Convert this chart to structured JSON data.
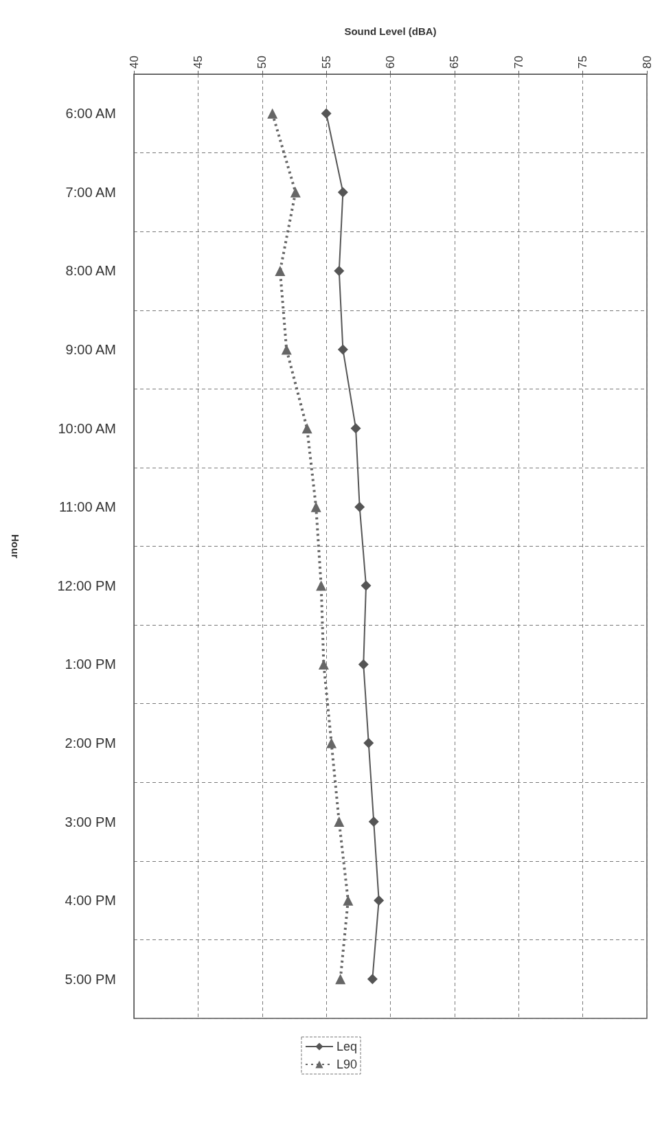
{
  "chart_data": {
    "type": "line",
    "orientation": "horizontal",
    "xlabel": "Sound Level (dBA)",
    "ylabel": "Hour",
    "categories": [
      "6:00 AM",
      "7:00 AM",
      "8:00 AM",
      "9:00 AM",
      "10:00 AM",
      "11:00 AM",
      "12:00 PM",
      "1:00 PM",
      "2:00 PM",
      "3:00 PM",
      "4:00 PM",
      "5:00 PM"
    ],
    "xlim": [
      40,
      80
    ],
    "xticks": [
      40,
      45,
      50,
      55,
      60,
      65,
      70,
      75,
      80
    ],
    "grid": true,
    "legend": "bottom",
    "series": [
      {
        "name": "Leq",
        "color": "#555555",
        "marker": "diamond",
        "line_style": "solid",
        "values": [
          55.0,
          56.3,
          56.0,
          56.3,
          57.3,
          57.6,
          58.1,
          57.9,
          58.3,
          58.7,
          59.1,
          58.6
        ]
      },
      {
        "name": "L90",
        "color": "#666666",
        "marker": "triangle",
        "line_style": "dotted",
        "values": [
          50.8,
          52.6,
          51.4,
          51.9,
          53.5,
          54.2,
          54.6,
          54.8,
          55.4,
          56.0,
          56.7,
          56.1
        ]
      }
    ]
  }
}
